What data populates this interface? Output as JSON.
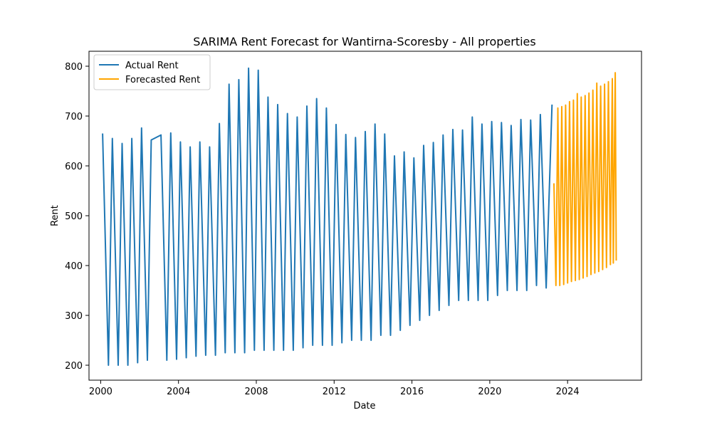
{
  "chart_data": {
    "type": "line",
    "title": "SARIMA Rent Forecast for Wantirna-Scoresby - All properties",
    "xlabel": "Date",
    "ylabel": "Rent",
    "xlim": [
      1999.4,
      2027.8
    ],
    "ylim": [
      170,
      830
    ],
    "x_ticks": [
      2000,
      2004,
      2008,
      2012,
      2016,
      2020,
      2024
    ],
    "x_tick_labels": [
      "2000",
      "2004",
      "2008",
      "2012",
      "2016",
      "2020",
      "2024"
    ],
    "y_ticks": [
      200,
      300,
      400,
      500,
      600,
      700,
      800
    ],
    "y_tick_labels": [
      "200",
      "300",
      "400",
      "500",
      "600",
      "700",
      "800"
    ],
    "grid": false,
    "legend_position": "top-left",
    "colors": {
      "actual": "#1f77b4",
      "forecast": "#ffa500"
    },
    "series": [
      {
        "name": "Actual Rent",
        "color": "#1f77b4",
        "points": [
          [
            2000.1,
            665
          ],
          [
            2000.4,
            200
          ],
          [
            2000.6,
            655
          ],
          [
            2000.9,
            200
          ],
          [
            2001.1,
            645
          ],
          [
            2001.4,
            200
          ],
          [
            2001.6,
            655
          ],
          [
            2001.9,
            205
          ],
          [
            2002.1,
            676
          ],
          [
            2002.4,
            210
          ],
          [
            2002.6,
            652
          ],
          [
            2003.1,
            662
          ],
          [
            2003.4,
            210
          ],
          [
            2003.6,
            666
          ],
          [
            2003.9,
            212
          ],
          [
            2004.1,
            648
          ],
          [
            2004.4,
            215
          ],
          [
            2004.6,
            638
          ],
          [
            2004.9,
            218
          ],
          [
            2005.1,
            648
          ],
          [
            2005.4,
            220
          ],
          [
            2005.6,
            638
          ],
          [
            2005.9,
            220
          ],
          [
            2006.1,
            685
          ],
          [
            2006.4,
            225
          ],
          [
            2006.6,
            764
          ],
          [
            2006.9,
            225
          ],
          [
            2007.1,
            773
          ],
          [
            2007.4,
            225
          ],
          [
            2007.6,
            796
          ],
          [
            2007.9,
            230
          ],
          [
            2008.1,
            792
          ],
          [
            2008.4,
            230
          ],
          [
            2008.6,
            738
          ],
          [
            2008.9,
            230
          ],
          [
            2009.1,
            723
          ],
          [
            2009.4,
            230
          ],
          [
            2009.6,
            705
          ],
          [
            2009.9,
            230
          ],
          [
            2010.1,
            698
          ],
          [
            2010.4,
            235
          ],
          [
            2010.6,
            720
          ],
          [
            2010.9,
            240
          ],
          [
            2011.1,
            735
          ],
          [
            2011.4,
            240
          ],
          [
            2011.6,
            716
          ],
          [
            2011.9,
            240
          ],
          [
            2012.1,
            683
          ],
          [
            2012.4,
            245
          ],
          [
            2012.6,
            663
          ],
          [
            2012.9,
            250
          ],
          [
            2013.1,
            657
          ],
          [
            2013.4,
            250
          ],
          [
            2013.6,
            669
          ],
          [
            2013.9,
            250
          ],
          [
            2014.1,
            684
          ],
          [
            2014.4,
            260
          ],
          [
            2014.6,
            664
          ],
          [
            2014.9,
            260
          ],
          [
            2015.1,
            620
          ],
          [
            2015.4,
            270
          ],
          [
            2015.6,
            628
          ],
          [
            2015.9,
            280
          ],
          [
            2016.1,
            616
          ],
          [
            2016.4,
            290
          ],
          [
            2016.6,
            641
          ],
          [
            2016.9,
            300
          ],
          [
            2017.1,
            647
          ],
          [
            2017.4,
            310
          ],
          [
            2017.6,
            662
          ],
          [
            2017.9,
            320
          ],
          [
            2018.1,
            673
          ],
          [
            2018.4,
            330
          ],
          [
            2018.6,
            672
          ],
          [
            2018.9,
            330
          ],
          [
            2019.1,
            698
          ],
          [
            2019.4,
            330
          ],
          [
            2019.6,
            684
          ],
          [
            2019.9,
            330
          ],
          [
            2020.1,
            689
          ],
          [
            2020.4,
            340
          ],
          [
            2020.6,
            687
          ],
          [
            2020.9,
            350
          ],
          [
            2021.1,
            681
          ],
          [
            2021.4,
            350
          ],
          [
            2021.6,
            693
          ],
          [
            2021.9,
            350
          ],
          [
            2022.1,
            692
          ],
          [
            2022.4,
            360
          ],
          [
            2022.6,
            703
          ],
          [
            2022.9,
            355
          ],
          [
            2023.2,
            723
          ]
        ]
      },
      {
        "name": "Forecasted Rent",
        "color": "#ffa500",
        "points": [
          [
            2023.3,
            565
          ],
          [
            2023.4,
            360
          ],
          [
            2023.5,
            716
          ],
          [
            2023.6,
            360
          ],
          [
            2023.7,
            719
          ],
          [
            2023.8,
            362
          ],
          [
            2023.9,
            722
          ],
          [
            2024.0,
            365
          ],
          [
            2024.1,
            729
          ],
          [
            2024.2,
            368
          ],
          [
            2024.3,
            732
          ],
          [
            2024.4,
            370
          ],
          [
            2024.5,
            745
          ],
          [
            2024.6,
            372
          ],
          [
            2024.7,
            738
          ],
          [
            2024.8,
            375
          ],
          [
            2024.9,
            741
          ],
          [
            2025.0,
            378
          ],
          [
            2025.1,
            746
          ],
          [
            2025.2,
            382
          ],
          [
            2025.3,
            752
          ],
          [
            2025.4,
            385
          ],
          [
            2025.5,
            766
          ],
          [
            2025.6,
            388
          ],
          [
            2025.7,
            760
          ],
          [
            2025.8,
            392
          ],
          [
            2025.9,
            764
          ],
          [
            2026.0,
            396
          ],
          [
            2026.1,
            769
          ],
          [
            2026.2,
            402
          ],
          [
            2026.3,
            775
          ],
          [
            2026.35,
            405
          ],
          [
            2026.45,
            787
          ],
          [
            2026.5,
            410
          ]
        ]
      }
    ]
  }
}
